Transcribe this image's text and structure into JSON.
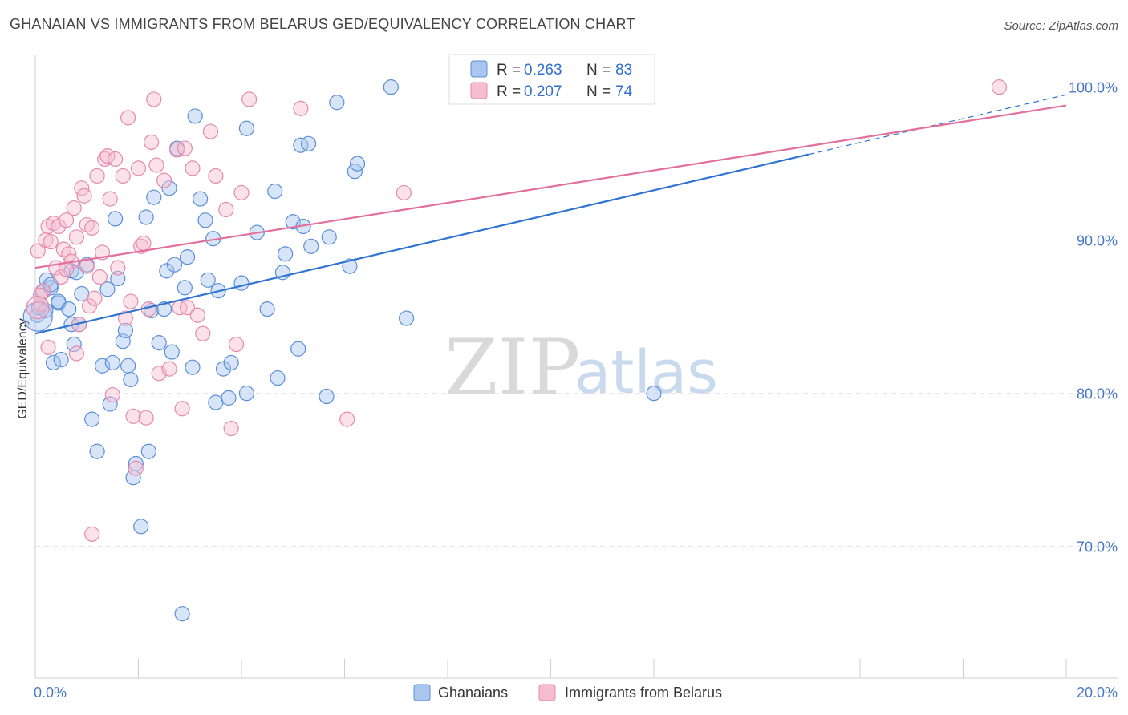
{
  "header": {
    "title": "GHANAIAN VS IMMIGRANTS FROM BELARUS GED/EQUIVALENCY CORRELATION CHART",
    "source": "Source: ZipAtlas.com"
  },
  "watermark": {
    "zip": "ZIP",
    "atlas": "atlas"
  },
  "colors": {
    "blue_fill": "#a9c6ef",
    "blue_stroke": "#5a8ed8",
    "blue_line": "#2f74d0",
    "pink_fill": "#f6bcd0",
    "pink_stroke": "#e58aab",
    "pink_line": "#e2709a",
    "grid": "#e3e3e3",
    "tick_text": "#4a78c8"
  },
  "stats": [
    {
      "r_label": "R =",
      "r_value": "0.263",
      "n_label": "N =",
      "n_value": "83"
    },
    {
      "r_label": "R =",
      "r_value": "0.207",
      "n_label": "N =",
      "n_value": "74"
    }
  ],
  "chart_data": {
    "type": "scatter",
    "title": "GHANAIAN VS IMMIGRANTS FROM BELARUS GED/EQUIVALENCY CORRELATION CHART",
    "xlabel": "",
    "ylabel": "GED/Equivalency",
    "xlim": [
      0,
      20
    ],
    "ylim": [
      61.5,
      101.5
    ],
    "x_tick_labels": [
      {
        "value": 0,
        "label": "0.0%"
      },
      {
        "value": 20,
        "label": "20.0%"
      }
    ],
    "y_tick_labels": [
      {
        "value": 70,
        "label": "70.0%"
      },
      {
        "value": 80,
        "label": "80.0%"
      },
      {
        "value": 90,
        "label": "90.0%"
      },
      {
        "value": 100,
        "label": "100.0%"
      }
    ],
    "legend": [
      "Ghanaians",
      "Immigrants from Belarus"
    ],
    "series": [
      {
        "name": "Ghanaians",
        "color": "#a9c6ef",
        "trend": {
          "x0": 0,
          "y0": 83.9,
          "x1": 15.0,
          "y1": 95.6,
          "dash_x1": 20.0,
          "dash_y1": 99.5
        },
        "points": [
          [
            0.04,
            85.1
          ],
          [
            0.07,
            85.6
          ],
          [
            0.14,
            86.6
          ],
          [
            0.22,
            87.4
          ],
          [
            0.3,
            86.9
          ],
          [
            0.35,
            82.0
          ],
          [
            0.45,
            85.9
          ],
          [
            0.45,
            86.0
          ],
          [
            0.65,
            85.5
          ],
          [
            0.7,
            84.5
          ],
          [
            0.7,
            88.0
          ],
          [
            0.75,
            83.2
          ],
          [
            0.8,
            87.9
          ],
          [
            0.85,
            84.5
          ],
          [
            0.9,
            86.5
          ],
          [
            0.5,
            82.2
          ],
          [
            1.1,
            78.3
          ],
          [
            1.2,
            76.2
          ],
          [
            1.3,
            81.8
          ],
          [
            1.4,
            86.8
          ],
          [
            1.45,
            79.3
          ],
          [
            1.5,
            82.0
          ],
          [
            1.55,
            91.4
          ],
          [
            1.6,
            87.5
          ],
          [
            1.7,
            83.4
          ],
          [
            1.75,
            84.1
          ],
          [
            1.8,
            81.8
          ],
          [
            1.85,
            80.9
          ],
          [
            1.9,
            74.5
          ],
          [
            1.95,
            75.4
          ],
          [
            2.05,
            71.3
          ],
          [
            2.15,
            91.5
          ],
          [
            2.2,
            76.2
          ],
          [
            2.25,
            85.4
          ],
          [
            2.3,
            92.8
          ],
          [
            2.4,
            83.3
          ],
          [
            2.5,
            85.5
          ],
          [
            2.55,
            88.0
          ],
          [
            2.6,
            93.4
          ],
          [
            2.65,
            82.7
          ],
          [
            2.7,
            88.4
          ],
          [
            2.75,
            96.0
          ],
          [
            2.85,
            65.6
          ],
          [
            2.9,
            86.9
          ],
          [
            2.95,
            88.9
          ],
          [
            3.05,
            81.7
          ],
          [
            3.1,
            98.1
          ],
          [
            3.2,
            92.7
          ],
          [
            3.3,
            91.3
          ],
          [
            3.35,
            87.4
          ],
          [
            3.45,
            90.1
          ],
          [
            3.5,
            79.4
          ],
          [
            3.55,
            86.7
          ],
          [
            3.65,
            81.6
          ],
          [
            3.75,
            79.7
          ],
          [
            3.8,
            82.0
          ],
          [
            4.0,
            87.2
          ],
          [
            4.1,
            80.0
          ],
          [
            4.1,
            97.3
          ],
          [
            4.3,
            90.5
          ],
          [
            4.5,
            85.5
          ],
          [
            4.65,
            93.2
          ],
          [
            4.7,
            81.0
          ],
          [
            4.8,
            87.9
          ],
          [
            4.85,
            89.1
          ],
          [
            5.0,
            91.2
          ],
          [
            5.1,
            82.9
          ],
          [
            5.15,
            96.2
          ],
          [
            5.2,
            90.9
          ],
          [
            5.3,
            96.3
          ],
          [
            5.35,
            89.6
          ],
          [
            5.65,
            79.8
          ],
          [
            5.7,
            90.2
          ],
          [
            5.85,
            99.0
          ],
          [
            6.1,
            88.3
          ],
          [
            6.2,
            94.5
          ],
          [
            6.25,
            95.0
          ],
          [
            6.9,
            100.0
          ],
          [
            7.2,
            84.9
          ],
          [
            12.0,
            80.0
          ],
          [
            0.3,
            87.1
          ],
          [
            0.2,
            85.4
          ],
          [
            1.0,
            88.4
          ]
        ]
      },
      {
        "name": "Immigrants from Belarus",
        "color": "#f6bcd0",
        "trend": {
          "x0": 0,
          "y0": 88.2,
          "x1": 20.0,
          "y1": 98.8
        },
        "points": [
          [
            0.05,
            89.3
          ],
          [
            0.1,
            85.8
          ],
          [
            0.15,
            86.7
          ],
          [
            0.2,
            90.0
          ],
          [
            0.25,
            83.0
          ],
          [
            0.25,
            90.9
          ],
          [
            0.3,
            89.9
          ],
          [
            0.35,
            91.1
          ],
          [
            0.4,
            88.2
          ],
          [
            0.45,
            90.9
          ],
          [
            0.5,
            87.6
          ],
          [
            0.55,
            89.4
          ],
          [
            0.6,
            91.3
          ],
          [
            0.65,
            89.1
          ],
          [
            0.7,
            88.6
          ],
          [
            0.75,
            92.1
          ],
          [
            0.8,
            90.2
          ],
          [
            0.8,
            82.6
          ],
          [
            0.85,
            84.5
          ],
          [
            0.9,
            93.4
          ],
          [
            0.95,
            92.9
          ],
          [
            1.0,
            91.0
          ],
          [
            1.0,
            88.3
          ],
          [
            1.05,
            85.7
          ],
          [
            1.1,
            90.8
          ],
          [
            1.15,
            86.2
          ],
          [
            1.2,
            94.2
          ],
          [
            1.25,
            87.6
          ],
          [
            1.3,
            89.2
          ],
          [
            1.35,
            95.3
          ],
          [
            1.4,
            95.5
          ],
          [
            1.45,
            92.7
          ],
          [
            1.5,
            79.9
          ],
          [
            1.55,
            95.3
          ],
          [
            1.6,
            88.2
          ],
          [
            1.7,
            94.2
          ],
          [
            1.75,
            84.9
          ],
          [
            1.8,
            98.0
          ],
          [
            1.85,
            86.0
          ],
          [
            1.9,
            78.5
          ],
          [
            1.95,
            75.1
          ],
          [
            2.0,
            94.7
          ],
          [
            2.05,
            89.6
          ],
          [
            2.1,
            89.8
          ],
          [
            2.15,
            78.4
          ],
          [
            2.2,
            85.5
          ],
          [
            2.25,
            96.4
          ],
          [
            2.3,
            99.2
          ],
          [
            2.35,
            94.9
          ],
          [
            2.4,
            81.3
          ],
          [
            2.5,
            93.9
          ],
          [
            2.6,
            81.6
          ],
          [
            2.75,
            95.9
          ],
          [
            2.8,
            85.6
          ],
          [
            2.85,
            79.0
          ],
          [
            2.9,
            96.0
          ],
          [
            2.95,
            85.6
          ],
          [
            3.05,
            94.7
          ],
          [
            3.15,
            85.1
          ],
          [
            3.25,
            83.9
          ],
          [
            3.4,
            97.1
          ],
          [
            3.5,
            94.2
          ],
          [
            3.7,
            92.0
          ],
          [
            3.8,
            77.7
          ],
          [
            3.9,
            83.2
          ],
          [
            4.0,
            93.1
          ],
          [
            4.15,
            99.2
          ],
          [
            5.15,
            98.6
          ],
          [
            6.05,
            78.3
          ],
          [
            7.15,
            93.1
          ],
          [
            1.1,
            70.8
          ],
          [
            0.1,
            86.4
          ],
          [
            0.6,
            88.1
          ],
          [
            18.7,
            100.0
          ]
        ]
      }
    ]
  }
}
